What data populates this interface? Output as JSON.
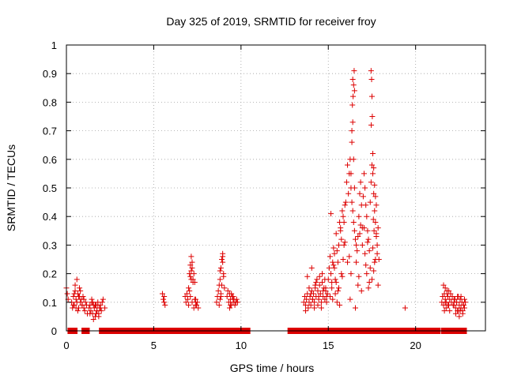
{
  "chart_data": {
    "type": "scatter",
    "title": "Day 325 of 2019, SRMTID for receiver froy",
    "xlabel": "GPS time / hours",
    "ylabel": "SRMTID / TECUs",
    "xlim": [
      0,
      24
    ],
    "ylim": [
      0,
      1
    ],
    "xticks": [
      0,
      5,
      10,
      15,
      20
    ],
    "yticks": [
      0,
      0.1,
      0.2,
      0.3,
      0.4,
      0.5,
      0.6,
      0.7,
      0.8,
      0.9,
      1
    ],
    "xtick_labels": [
      "0",
      "5",
      "10",
      "15",
      "20"
    ],
    "ytick_labels": [
      "0",
      "0.1",
      "0.2",
      "0.3",
      "0.4",
      "0.5",
      "0.6",
      "0.7",
      "0.8",
      "0.9",
      "1"
    ],
    "grid": true,
    "marker": "+",
    "color": "#dd0000",
    "zero_ranges": [
      [
        0.2,
        0.5
      ],
      [
        1.0,
        1.2
      ],
      [
        2.0,
        5.3
      ],
      [
        5.4,
        6.6
      ],
      [
        6.8,
        7.5
      ],
      [
        7.6,
        8.5
      ],
      [
        8.6,
        9.1
      ],
      [
        9.3,
        9.8
      ],
      [
        9.9,
        10.4
      ],
      [
        12.8,
        13.4
      ],
      [
        13.5,
        14.0
      ],
      [
        14.2,
        14.8
      ],
      [
        15.0,
        15.6
      ],
      [
        15.8,
        16.0
      ],
      [
        16.2,
        16.6
      ],
      [
        16.8,
        17.0
      ],
      [
        17.1,
        17.3
      ],
      [
        17.5,
        17.7
      ],
      [
        17.9,
        20.8
      ],
      [
        21.0,
        21.3
      ],
      [
        21.6,
        22.2
      ],
      [
        22.3,
        22.4
      ],
      [
        22.6,
        22.8
      ]
    ],
    "series": [
      {
        "name": "SRMTID",
        "x": [
          0.0,
          0.05,
          0.1,
          0.3,
          0.35,
          0.4,
          0.45,
          0.5,
          0.55,
          0.6,
          0.65,
          0.7,
          0.75,
          0.8,
          0.85,
          0.9,
          0.95,
          1.0,
          1.05,
          1.1,
          1.15,
          1.2,
          0.4,
          0.5,
          0.6,
          0.7,
          0.8,
          0.9,
          1.0,
          0.65,
          0.75,
          0.55,
          0.45,
          1.3,
          1.35,
          1.4,
          1.45,
          1.5,
          1.55,
          1.6,
          1.65,
          1.7,
          1.75,
          1.8,
          1.85,
          1.9,
          1.95,
          2.0,
          2.05,
          2.1,
          2.2,
          1.35,
          1.45,
          1.55,
          1.65,
          1.75,
          1.85,
          1.95,
          1.5,
          1.7,
          1.8,
          5.5,
          5.55,
          5.6,
          5.65,
          5.6,
          6.8,
          6.85,
          6.9,
          6.95,
          7.0,
          7.05,
          7.1,
          7.15,
          7.2,
          7.25,
          7.3,
          7.35,
          7.4,
          7.45,
          7.5,
          7.55,
          7.0,
          7.05,
          7.1,
          7.15,
          7.2,
          7.25,
          7.1,
          7.15,
          7.2,
          7.3,
          7.35,
          7.4,
          8.6,
          8.65,
          8.7,
          8.75,
          8.8,
          8.85,
          8.9,
          8.95,
          9.0,
          9.05,
          8.8,
          8.85,
          8.9,
          8.95,
          9.0,
          8.75,
          8.85,
          8.95,
          8.8,
          9.2,
          9.25,
          9.3,
          9.35,
          9.4,
          9.45,
          9.5,
          9.55,
          9.6,
          9.65,
          9.7,
          9.75,
          9.8,
          9.35,
          9.45,
          9.55,
          9.4,
          13.6,
          13.65,
          13.7,
          13.75,
          13.8,
          13.85,
          13.9,
          13.95,
          14.0,
          14.05,
          14.1,
          13.7,
          13.8,
          13.9,
          14.0,
          14.05,
          14.1,
          14.15,
          14.2,
          14.25,
          14.3,
          14.35,
          14.4,
          14.45,
          14.5,
          14.55,
          14.6,
          14.65,
          14.7,
          14.75,
          14.8,
          14.85,
          14.9,
          14.95,
          14.2,
          14.3,
          14.4,
          14.5,
          14.6,
          14.7,
          14.8,
          14.9,
          14.25,
          14.45,
          14.65,
          14.85,
          15.0,
          15.05,
          15.1,
          15.15,
          15.2,
          15.25,
          15.3,
          15.35,
          15.4,
          15.45,
          15.5,
          15.55,
          15.6,
          15.65,
          15.7,
          15.75,
          15.8,
          15.85,
          15.9,
          15.95,
          15.1,
          15.2,
          15.3,
          15.4,
          15.5,
          15.6,
          15.7,
          15.8,
          15.9,
          15.15,
          15.35,
          15.55,
          15.75,
          15.95,
          15.25,
          15.45,
          15.65,
          15.85,
          16.0,
          16.05,
          16.1,
          16.15,
          16.2,
          16.25,
          16.3,
          16.35,
          16.4,
          16.45,
          16.5,
          16.55,
          16.6,
          16.65,
          16.7,
          16.75,
          16.8,
          16.85,
          16.9,
          16.95,
          16.35,
          16.4,
          16.38,
          16.42,
          16.45,
          16.4,
          16.48,
          16.5,
          16.35,
          16.45,
          16.3,
          16.5,
          16.2,
          16.3,
          16.6,
          16.7,
          16.8,
          16.9,
          16.1,
          16.25,
          16.55,
          16.75,
          16.85,
          16.95,
          17.0,
          17.05,
          17.1,
          17.15,
          17.2,
          17.25,
          17.3,
          17.35,
          17.4,
          17.45,
          17.5,
          17.55,
          17.6,
          17.65,
          17.7,
          17.75,
          17.8,
          17.85,
          17.9,
          17.45,
          17.48,
          17.5,
          17.52,
          17.46,
          17.55,
          17.6,
          17.65,
          17.7,
          17.75,
          17.58,
          17.62,
          17.1,
          17.2,
          17.3,
          17.4,
          17.5,
          17.6,
          17.7,
          17.8,
          17.15,
          17.35,
          17.55,
          17.75,
          17.25,
          17.65,
          17.85,
          17.05,
          19.4,
          21.5,
          21.55,
          21.6,
          21.65,
          21.7,
          21.75,
          21.8,
          21.85,
          21.9,
          21.95,
          22.0,
          22.05,
          22.1,
          22.15,
          22.2,
          21.6,
          21.7,
          21.8,
          21.9,
          21.65,
          21.75,
          21.85,
          21.95,
          21.55,
          21.7,
          22.2,
          22.25,
          22.3,
          22.35,
          22.4,
          22.45,
          22.5,
          22.55,
          22.6,
          22.65,
          22.7,
          22.75,
          22.8,
          22.85,
          22.3,
          22.4,
          22.5,
          22.6,
          22.7,
          22.8,
          22.35,
          22.55,
          22.75,
          22.45
        ],
        "y": [
          0.15,
          0.13,
          0.11,
          0.1,
          0.08,
          0.12,
          0.09,
          0.14,
          0.11,
          0.1,
          0.13,
          0.08,
          0.12,
          0.1,
          0.11,
          0.09,
          0.12,
          0.08,
          0.07,
          0.1,
          0.09,
          0.06,
          0.09,
          0.16,
          0.18,
          0.12,
          0.14,
          0.09,
          0.11,
          0.07,
          0.15,
          0.08,
          0.13,
          0.08,
          0.09,
          0.07,
          0.1,
          0.06,
          0.09,
          0.08,
          0.05,
          0.09,
          0.07,
          0.1,
          0.06,
          0.08,
          0.09,
          0.07,
          0.1,
          0.11,
          0.08,
          0.06,
          0.11,
          0.04,
          0.09,
          0.07,
          0.05,
          0.08,
          0.1,
          0.06,
          0.09,
          0.13,
          0.11,
          0.1,
          0.09,
          0.12,
          0.12,
          0.1,
          0.13,
          0.11,
          0.09,
          0.14,
          0.19,
          0.21,
          0.24,
          0.18,
          0.2,
          0.17,
          0.11,
          0.09,
          0.1,
          0.08,
          0.15,
          0.2,
          0.23,
          0.26,
          0.22,
          0.17,
          0.12,
          0.18,
          0.1,
          0.08,
          0.11,
          0.09,
          0.1,
          0.12,
          0.14,
          0.16,
          0.18,
          0.22,
          0.25,
          0.27,
          0.2,
          0.15,
          0.11,
          0.13,
          0.16,
          0.24,
          0.19,
          0.09,
          0.12,
          0.26,
          0.21,
          0.12,
          0.14,
          0.1,
          0.13,
          0.11,
          0.09,
          0.12,
          0.1,
          0.11,
          0.09,
          0.1,
          0.11,
          0.1,
          0.08,
          0.13,
          0.12,
          0.09,
          0.1,
          0.12,
          0.09,
          0.11,
          0.13,
          0.08,
          0.1,
          0.12,
          0.09,
          0.14,
          0.11,
          0.07,
          0.19,
          0.15,
          0.13,
          0.22,
          0.11,
          0.13,
          0.1,
          0.15,
          0.12,
          0.18,
          0.14,
          0.11,
          0.16,
          0.13,
          0.1,
          0.17,
          0.12,
          0.15,
          0.11,
          0.14,
          0.12,
          0.13,
          0.08,
          0.17,
          0.09,
          0.19,
          0.08,
          0.14,
          0.18,
          0.1,
          0.16,
          0.12,
          0.2,
          0.15,
          0.18,
          0.22,
          0.26,
          0.2,
          0.15,
          0.24,
          0.29,
          0.22,
          0.18,
          0.34,
          0.28,
          0.24,
          0.3,
          0.38,
          0.35,
          0.32,
          0.42,
          0.4,
          0.38,
          0.44,
          0.12,
          0.17,
          0.23,
          0.13,
          0.1,
          0.15,
          0.36,
          0.19,
          0.3,
          0.41,
          0.27,
          0.14,
          0.2,
          0.31,
          0.11,
          0.17,
          0.09,
          0.25,
          0.45,
          0.52,
          0.58,
          0.48,
          0.55,
          0.6,
          0.5,
          0.45,
          0.42,
          0.38,
          0.35,
          0.32,
          0.3,
          0.28,
          0.33,
          0.4,
          0.48,
          0.52,
          0.44,
          0.36,
          0.7,
          0.73,
          0.79,
          0.82,
          0.86,
          0.88,
          0.91,
          0.84,
          0.66,
          0.6,
          0.55,
          0.5,
          0.26,
          0.2,
          0.24,
          0.16,
          0.34,
          0.14,
          0.24,
          0.11,
          0.08,
          0.19,
          0.37,
          0.3,
          0.47,
          0.55,
          0.5,
          0.44,
          0.4,
          0.35,
          0.32,
          0.28,
          0.45,
          0.52,
          0.58,
          0.55,
          0.48,
          0.42,
          0.38,
          0.33,
          0.3,
          0.36,
          0.25,
          0.91,
          0.88,
          0.82,
          0.75,
          0.72,
          0.62,
          0.57,
          0.51,
          0.47,
          0.44,
          0.39,
          0.35,
          0.27,
          0.2,
          0.15,
          0.22,
          0.18,
          0.21,
          0.25,
          0.27,
          0.23,
          0.17,
          0.29,
          0.34,
          0.31,
          0.24,
          0.16,
          0.36,
          0.08,
          0.1,
          0.12,
          0.09,
          0.13,
          0.11,
          0.1,
          0.14,
          0.12,
          0.09,
          0.11,
          0.13,
          0.1,
          0.12,
          0.09,
          0.11,
          0.16,
          0.15,
          0.13,
          0.14,
          0.07,
          0.08,
          0.09,
          0.07,
          0.12,
          0.1,
          0.09,
          0.11,
          0.08,
          0.1,
          0.12,
          0.07,
          0.09,
          0.11,
          0.08,
          0.1,
          0.07,
          0.09,
          0.08,
          0.1,
          0.06,
          0.07,
          0.05,
          0.12,
          0.06,
          0.11,
          0.1,
          0.07,
          0.09,
          0.12
        ]
      }
    ]
  }
}
